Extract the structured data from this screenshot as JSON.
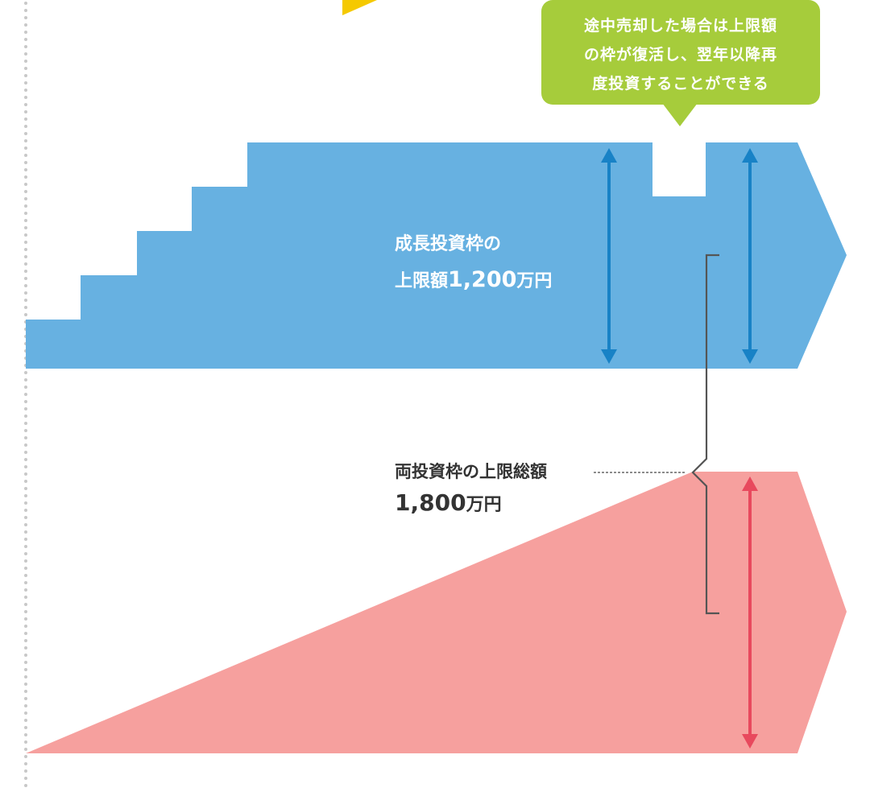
{
  "callout": {
    "line1": "途中売却した場合は上限額",
    "line2": "の枠が復活し、翌年以降再",
    "line3": "度投資することができる"
  },
  "growth_frame": {
    "title": "成長投資枠の",
    "limit_prefix": "上限額",
    "limit_number": "1,200",
    "limit_unit": "万円"
  },
  "total_limit": {
    "title": "両投資枠の上限総額",
    "amount_number": "1,800",
    "amount_unit": "万円"
  },
  "colors": {
    "growth_fill": "#67b1e1",
    "growth_arrow": "#1882c6",
    "total_fill": "#f6a09e",
    "total_arrow": "#e8495d",
    "callout_fill": "#a6cc3b",
    "accent_yellow": "#f5c900",
    "bracket": "#555555",
    "dotted_border": "#c8c8c8"
  }
}
